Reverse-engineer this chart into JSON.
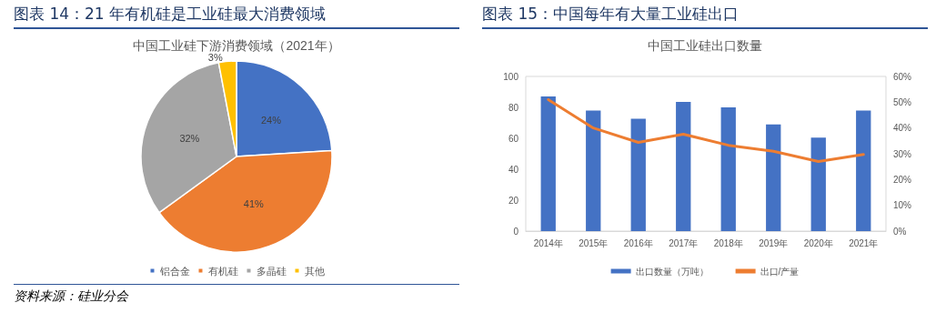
{
  "chart_data": [
    {
      "type": "pie",
      "title": "图表 14：21 年有机硅是工业硅最大消费领域",
      "subtitle": "中国工业硅下游消费领域（2021年）",
      "categories": [
        "铝合金",
        "有机硅",
        "多晶硅",
        "其他"
      ],
      "values": [
        24,
        41,
        32,
        3
      ],
      "colors": [
        "#4472c4",
        "#ed7d31",
        "#a5a5a5",
        "#ffc000"
      ],
      "value_labels": [
        "24%",
        "41%",
        "32%",
        "3%"
      ],
      "legend": "bottom",
      "annotations": [
        "资料来源：硅业分会"
      ]
    },
    {
      "type": "bar",
      "title": "图表 15：中国每年有大量工业硅出口",
      "subtitle": "中国工业硅出口数量",
      "categories": [
        "2014年",
        "2015年",
        "2016年",
        "2017年",
        "2018年",
        "2019年",
        "2020年",
        "2021年"
      ],
      "series": [
        {
          "name": "出口数量（万吨）",
          "type": "bar",
          "color": "#4472c4",
          "values": [
            87,
            78,
            72.6,
            83.5,
            80,
            69,
            60.4,
            78
          ]
        },
        {
          "name": "出口/产量",
          "type": "line",
          "axis": "y2",
          "color": "#ed7d31",
          "values": [
            51,
            40,
            34.4,
            37.6,
            33.3,
            31,
            27,
            29.7
          ]
        }
      ],
      "ylim": [
        0,
        100
      ],
      "yticks": [
        0,
        20,
        40,
        60,
        80,
        100
      ],
      "y2lim": [
        0,
        60
      ],
      "y2ticks": [
        {
          "value": 0,
          "label": "0%"
        },
        {
          "value": 10,
          "label": "10%"
        },
        {
          "value": 20,
          "label": "20%"
        },
        {
          "value": 30,
          "label": "30%"
        },
        {
          "value": 40,
          "label": "40%"
        },
        {
          "value": 50,
          "label": "50%"
        },
        {
          "value": 60,
          "label": "60%"
        }
      ],
      "grid": false,
      "legend": "bottom",
      "marker": "none",
      "line_style": "solid"
    }
  ]
}
